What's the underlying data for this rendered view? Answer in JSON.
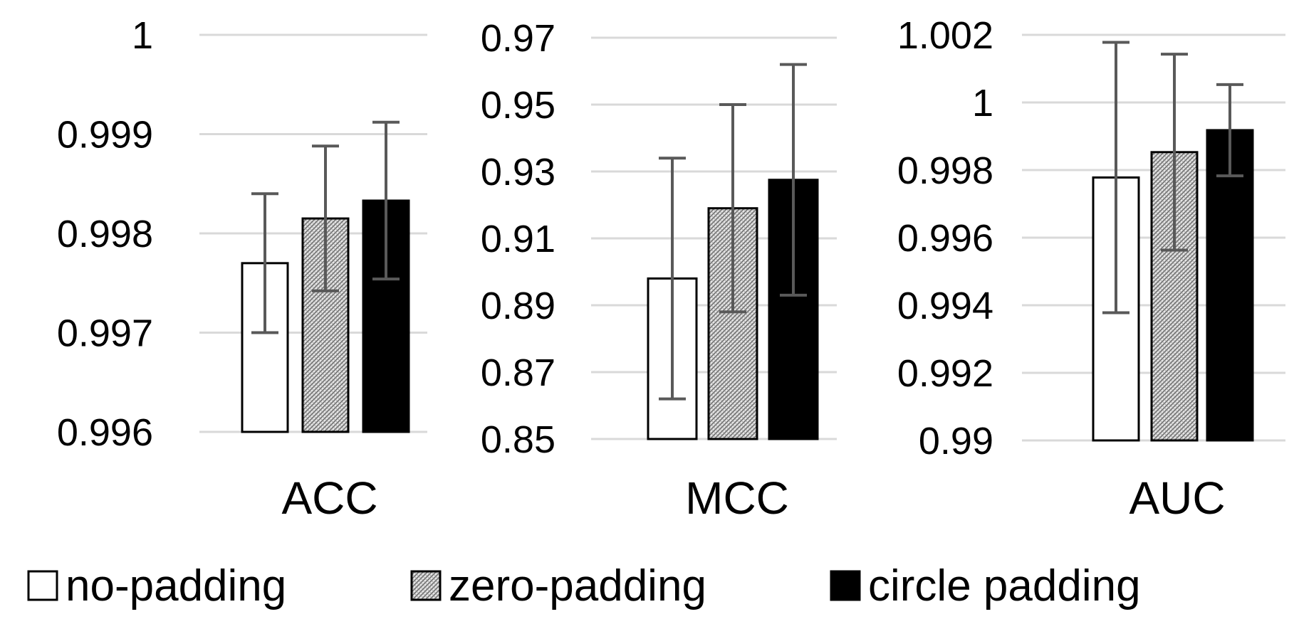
{
  "chart_data": [
    {
      "type": "bar",
      "categories": [
        "ACC"
      ],
      "ylim": [
        0.996,
        1.0
      ],
      "yticks": [
        "0.996",
        "0.997",
        "0.998",
        "0.999",
        "1"
      ],
      "series": [
        {
          "name": "no-padding",
          "values": [
            0.9977
          ],
          "error": [
            0.0007
          ]
        },
        {
          "name": "zero-padding",
          "values": [
            0.99815
          ],
          "error": [
            0.00073
          ]
        },
        {
          "name": "circle padding",
          "values": [
            0.99833
          ],
          "error": [
            0.00079
          ]
        }
      ]
    },
    {
      "type": "bar",
      "categories": [
        "MCC"
      ],
      "ylim": [
        0.85,
        0.97
      ],
      "yticks": [
        "0.85",
        "0.87",
        "0.89",
        "0.91",
        "0.93",
        "0.95",
        "0.97"
      ],
      "series": [
        {
          "name": "no-padding",
          "values": [
            0.898
          ],
          "error": [
            0.036
          ]
        },
        {
          "name": "zero-padding",
          "values": [
            0.919
          ],
          "error": [
            0.031
          ]
        },
        {
          "name": "circle padding",
          "values": [
            0.9275
          ],
          "error": [
            0.0345
          ]
        }
      ]
    },
    {
      "type": "bar",
      "categories": [
        "AUC"
      ],
      "ylim": [
        0.99,
        1.002
      ],
      "yticks": [
        "0.99",
        "0.992",
        "0.994",
        "0.996",
        "0.998",
        "1",
        "1.002"
      ],
      "series": [
        {
          "name": "no-padding",
          "values": [
            0.99778
          ],
          "error": [
            0.004
          ]
        },
        {
          "name": "zero-padding",
          "values": [
            0.99853
          ],
          "error": [
            0.0029
          ]
        },
        {
          "name": "circle padding",
          "values": [
            0.99918
          ],
          "error": [
            0.00135
          ]
        }
      ]
    }
  ],
  "legend": {
    "items": [
      "no-padding",
      "zero-padding",
      "circle padding"
    ],
    "placement": "bottom"
  },
  "colors": {
    "no_padding": "#ffffff",
    "zero_padding": "#c8c8c8",
    "circle_padding": "#000000",
    "grid": "#d9d9d9",
    "error_bar": "#595959"
  }
}
